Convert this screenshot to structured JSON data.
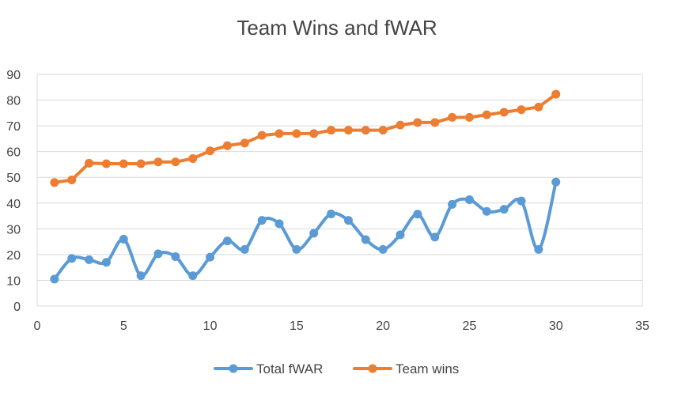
{
  "chart_data": {
    "type": "line",
    "title": "Team Wins and fWAR",
    "xlabel": "",
    "ylabel": "",
    "xlim": [
      0,
      35
    ],
    "ylim": [
      0,
      90
    ],
    "x_ticks": [
      0,
      5,
      10,
      15,
      20,
      25,
      30,
      35
    ],
    "y_ticks": [
      0,
      10,
      20,
      30,
      40,
      50,
      60,
      70,
      80,
      90
    ],
    "grid": "horizontal",
    "legend": "bottom",
    "x": [
      1,
      2,
      3,
      4,
      5,
      6,
      7,
      8,
      9,
      10,
      11,
      12,
      13,
      14,
      15,
      16,
      17,
      18,
      19,
      20,
      21,
      22,
      23,
      24,
      25,
      26,
      27,
      28,
      29,
      30
    ],
    "series": [
      {
        "name": "Total fWAR",
        "color": "#5B9BD5",
        "smooth": true,
        "values": [
          10.5,
          18.5,
          18,
          17,
          26,
          11.8,
          20.3,
          19.2,
          11.8,
          19,
          25.3,
          22,
          33.3,
          32,
          22,
          28.3,
          35.8,
          33.3,
          25.8,
          22,
          27.7,
          35.7,
          26.8,
          39.5,
          41.3,
          36.8,
          37.6,
          40.8,
          22,
          48.2
        ]
      },
      {
        "name": "Team wins",
        "color": "#ED7D31",
        "smooth": false,
        "values": [
          48,
          49,
          55.5,
          55.3,
          55.3,
          55.3,
          56,
          56,
          57.3,
          60.3,
          62.3,
          63.3,
          66.3,
          67,
          67,
          67,
          68.3,
          68.3,
          68.3,
          68.3,
          70.3,
          71.3,
          71.3,
          73.3,
          73.3,
          74.3,
          75.3,
          76.3,
          77.3,
          82.3
        ]
      }
    ]
  }
}
